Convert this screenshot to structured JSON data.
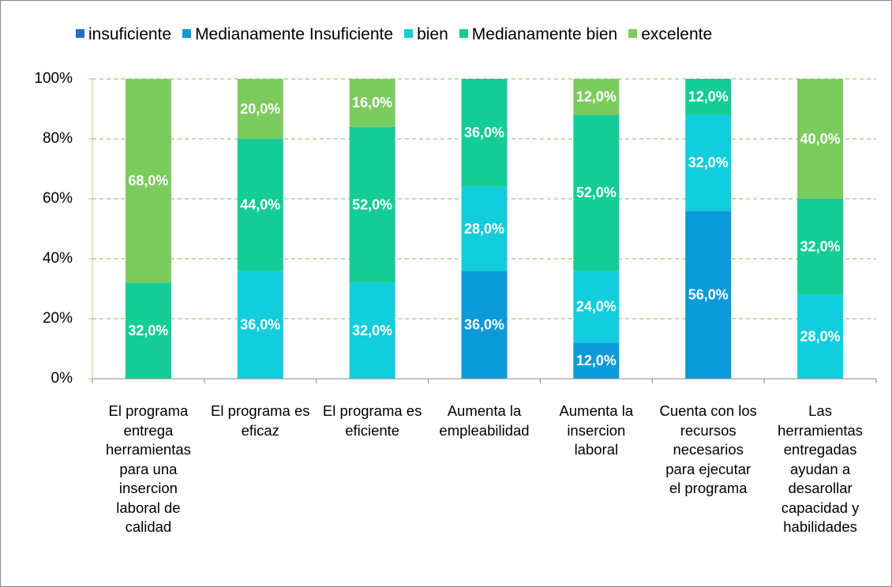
{
  "chart_data": {
    "type": "stacked_bar",
    "categories": [
      "El programa entrega herramientas para una insercion laboral de calidad",
      "El programa es eficaz",
      "El programa es eficiente",
      "Aumenta la empleabilidad",
      "Aumenta la insercion laboral",
      "Cuenta con los recursos necesarios para ejecutar el programa",
      "Las herramientas entregadas ayudan a desarollar capacidad y habilidades"
    ],
    "series": [
      {
        "name": "insuficiente",
        "color": "#1f6fc3",
        "values": [
          0,
          0,
          0,
          0,
          0,
          0,
          0
        ]
      },
      {
        "name": "Medianamente Insuficiente",
        "color": "#0a9ad8",
        "values": [
          0,
          0,
          0,
          36,
          12,
          56,
          0
        ],
        "value_labels": [
          null,
          null,
          null,
          "36,0%",
          "12,0%",
          "56,0%",
          null
        ]
      },
      {
        "name": "bien",
        "color": "#12cddb",
        "values": [
          0,
          36,
          32,
          28,
          24,
          32,
          28
        ],
        "value_labels": [
          null,
          "36,0%",
          "32,0%",
          "28,0%",
          "24,0%",
          "32,0%",
          "28,0%"
        ]
      },
      {
        "name": "Medianamente bien",
        "color": "#14cc96",
        "values": [
          32,
          44,
          52,
          36,
          52,
          12,
          32
        ],
        "value_labels": [
          "32,0%",
          "44,0%",
          "52,0%",
          "36,0%",
          "52,0%",
          "12,0%",
          "32,0%"
        ]
      },
      {
        "name": "excelente",
        "color": "#7ccb5e",
        "values": [
          68,
          20,
          16,
          0,
          12,
          0,
          40
        ],
        "value_labels": [
          "68,0%",
          "20,0%",
          "16,0%",
          null,
          "12,0%",
          null,
          "40,0%"
        ]
      }
    ],
    "ylim": [
      0,
      100
    ],
    "yticks": [
      {
        "value": 0,
        "label": "0%"
      },
      {
        "value": 20,
        "label": "20%"
      },
      {
        "value": 40,
        "label": "40%"
      },
      {
        "value": 60,
        "label": "60%"
      },
      {
        "value": 80,
        "label": "80%"
      },
      {
        "value": 100,
        "label": "100%"
      }
    ],
    "grid": true,
    "legend": "top"
  }
}
